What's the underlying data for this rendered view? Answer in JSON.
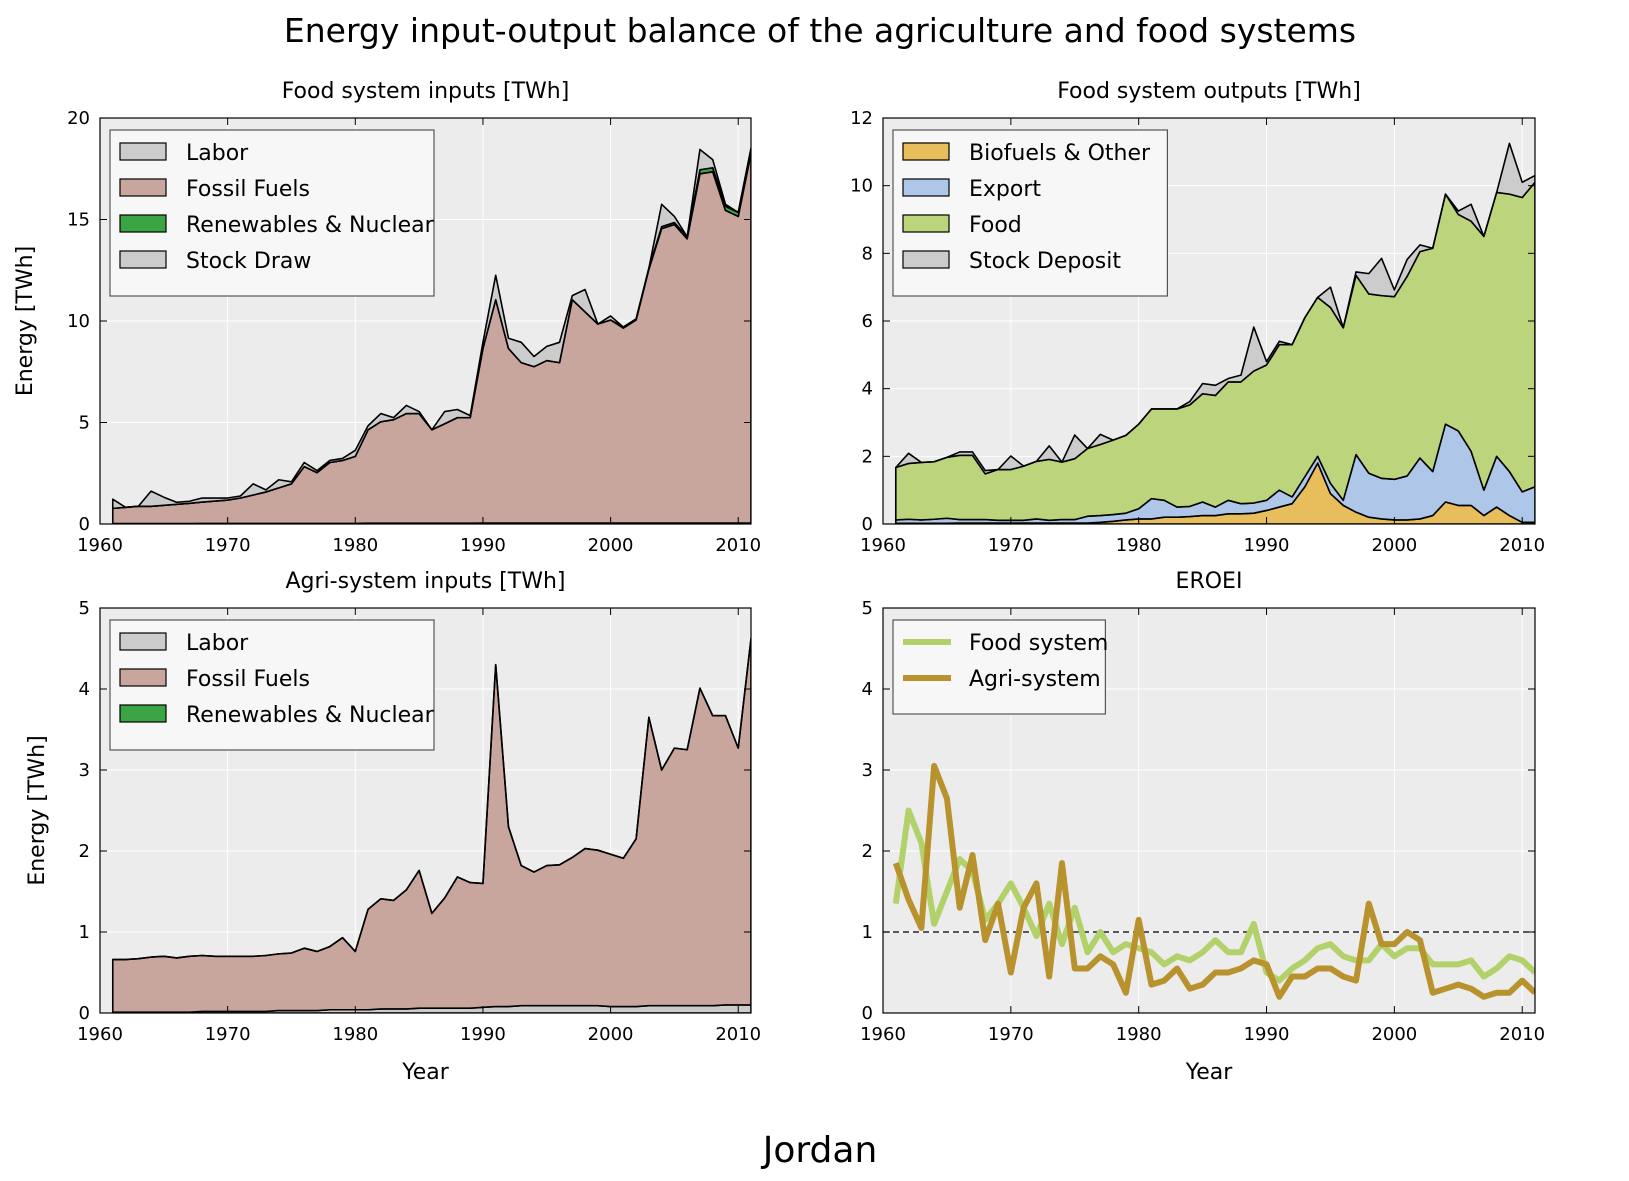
{
  "figure": {
    "title": "Energy input-output balance of the agriculture and food systems",
    "country": "Jordan"
  },
  "chart_data": [
    {
      "id": "food_inputs",
      "type": "area",
      "title": "Food system inputs [TWh]",
      "xlabel": "",
      "ylabel": "Energy [TWh]",
      "xlim": [
        1960,
        2011
      ],
      "ylim": [
        0,
        20
      ],
      "xticks": [
        1960,
        1970,
        1980,
        1990,
        2000,
        2010
      ],
      "yticks": [
        0,
        5,
        10,
        15,
        20
      ],
      "grid": true,
      "legend_position": "top-left",
      "x": [
        1961,
        1962,
        1963,
        1964,
        1965,
        1966,
        1967,
        1968,
        1969,
        1970,
        1971,
        1972,
        1973,
        1974,
        1975,
        1976,
        1977,
        1978,
        1979,
        1980,
        1981,
        1982,
        1983,
        1984,
        1985,
        1986,
        1987,
        1988,
        1989,
        1990,
        1991,
        1992,
        1993,
        1994,
        1995,
        1996,
        1997,
        1998,
        1999,
        2000,
        2001,
        2002,
        2003,
        2004,
        2005,
        2006,
        2007,
        2008,
        2009,
        2010,
        2011
      ],
      "series": [
        {
          "name": "Labor",
          "color": "#cccccc",
          "values": [
            0.02,
            0.02,
            0.02,
            0.02,
            0.02,
            0.02,
            0.02,
            0.03,
            0.03,
            0.03,
            0.03,
            0.03,
            0.03,
            0.03,
            0.03,
            0.03,
            0.03,
            0.03,
            0.03,
            0.03,
            0.04,
            0.04,
            0.04,
            0.04,
            0.04,
            0.04,
            0.04,
            0.04,
            0.04,
            0.05,
            0.05,
            0.05,
            0.05,
            0.05,
            0.05,
            0.05,
            0.05,
            0.05,
            0.05,
            0.05,
            0.05,
            0.05,
            0.05,
            0.05,
            0.05,
            0.05,
            0.05,
            0.05,
            0.05,
            0.05,
            0.05
          ]
        },
        {
          "name": "Fossil Fuels",
          "color": "#c8a59d",
          "values": [
            0.75,
            0.8,
            0.85,
            0.85,
            0.9,
            0.95,
            1.0,
            1.05,
            1.1,
            1.15,
            1.25,
            1.4,
            1.55,
            1.75,
            1.95,
            2.8,
            2.5,
            3.0,
            3.1,
            3.3,
            4.6,
            5.0,
            5.1,
            5.4,
            5.4,
            4.6,
            4.9,
            5.2,
            5.2,
            8.6,
            11.0,
            8.6,
            7.9,
            7.7,
            8.0,
            7.9,
            11.0,
            10.4,
            9.8,
            10.0,
            9.6,
            10.0,
            12.5,
            14.5,
            14.7,
            14.0,
            17.2,
            17.3,
            15.4,
            15.1,
            18.2
          ]
        },
        {
          "name": "Renewables & Nuclear",
          "color": "#3aa542",
          "values": [
            0,
            0,
            0,
            0,
            0,
            0,
            0,
            0,
            0,
            0,
            0,
            0,
            0,
            0,
            0,
            0,
            0,
            0,
            0,
            0,
            0,
            0,
            0,
            0,
            0,
            0,
            0,
            0,
            0,
            0,
            0,
            0,
            0,
            0,
            0,
            0,
            0,
            0,
            0,
            0,
            0.05,
            0.05,
            0.05,
            0.1,
            0.1,
            0.1,
            0.2,
            0.2,
            0.2,
            0.2,
            0.25
          ]
        },
        {
          "name": "Stock Draw",
          "color": "#cccccc",
          "values": [
            0.45,
            0,
            0,
            0.75,
            0.4,
            0.1,
            0.1,
            0.2,
            0.15,
            0.1,
            0.1,
            0.55,
            0.1,
            0.4,
            0.1,
            0.2,
            0.1,
            0.1,
            0.1,
            0.3,
            0.2,
            0.4,
            0.1,
            0.4,
            0.1,
            0,
            0.6,
            0.4,
            0.1,
            0.3,
            1.2,
            0.5,
            1.0,
            0.5,
            0.7,
            1.0,
            0.2,
            1.1,
            0,
            0.2,
            0,
            0,
            0,
            1.1,
            0.3,
            0,
            1.0,
            0.4,
            0.1,
            0,
            0
          ]
        }
      ]
    },
    {
      "id": "food_outputs",
      "type": "area",
      "title": "Food system outputs [TWh]",
      "xlabel": "",
      "ylabel": "",
      "xlim": [
        1960,
        2011
      ],
      "ylim": [
        0,
        12
      ],
      "xticks": [
        1960,
        1970,
        1980,
        1990,
        2000,
        2010
      ],
      "yticks": [
        0,
        2,
        4,
        6,
        8,
        10,
        12
      ],
      "grid": true,
      "legend_position": "top-left",
      "x": [
        1961,
        1962,
        1963,
        1964,
        1965,
        1966,
        1967,
        1968,
        1969,
        1970,
        1971,
        1972,
        1973,
        1974,
        1975,
        1976,
        1977,
        1978,
        1979,
        1980,
        1981,
        1982,
        1983,
        1984,
        1985,
        1986,
        1987,
        1988,
        1989,
        1990,
        1991,
        1992,
        1993,
        1994,
        1995,
        1996,
        1997,
        1998,
        1999,
        2000,
        2001,
        2002,
        2003,
        2004,
        2005,
        2006,
        2007,
        2008,
        2009,
        2010,
        2011
      ],
      "series": [
        {
          "name": "Biofuels & Other",
          "color": "#e8be5c",
          "values": [
            0.02,
            0.02,
            0.02,
            0.02,
            0.02,
            0.03,
            0.03,
            0.03,
            0.03,
            0.03,
            0.03,
            0.03,
            0.03,
            0.03,
            0.03,
            0.03,
            0.05,
            0.08,
            0.12,
            0.15,
            0.15,
            0.2,
            0.2,
            0.22,
            0.25,
            0.25,
            0.3,
            0.3,
            0.32,
            0.4,
            0.5,
            0.6,
            1.1,
            1.8,
            0.9,
            0.55,
            0.35,
            0.2,
            0.15,
            0.12,
            0.12,
            0.15,
            0.25,
            0.65,
            0.55,
            0.55,
            0.25,
            0.5,
            0.25,
            0.05,
            0.05
          ]
        },
        {
          "name": "Export",
          "color": "#aec7e8",
          "values": [
            0.1,
            0.12,
            0.1,
            0.12,
            0.15,
            0.1,
            0.1,
            0.1,
            0.08,
            0.08,
            0.08,
            0.12,
            0.08,
            0.1,
            0.1,
            0.2,
            0.2,
            0.2,
            0.2,
            0.3,
            0.6,
            0.5,
            0.3,
            0.3,
            0.4,
            0.25,
            0.4,
            0.3,
            0.3,
            0.3,
            0.5,
            0.2,
            0.3,
            0.2,
            0.3,
            0.15,
            1.7,
            1.3,
            1.2,
            1.2,
            1.3,
            1.8,
            1.3,
            2.3,
            2.2,
            1.6,
            0.75,
            1.5,
            1.3,
            0.9,
            1.05
          ]
        },
        {
          "name": "Food",
          "color": "#bcd47b",
          "values": [
            1.55,
            1.65,
            1.7,
            1.7,
            1.8,
            1.9,
            1.9,
            1.35,
            1.5,
            1.5,
            1.6,
            1.7,
            1.8,
            1.7,
            1.8,
            2.0,
            2.1,
            2.2,
            2.3,
            2.5,
            2.65,
            2.7,
            2.9,
            3.0,
            3.2,
            3.3,
            3.5,
            3.6,
            3.9,
            4.0,
            4.3,
            4.5,
            4.7,
            4.7,
            5.2,
            5.1,
            5.3,
            5.3,
            5.4,
            5.4,
            5.9,
            6.1,
            6.6,
            6.8,
            6.4,
            6.8,
            7.5,
            7.8,
            8.2,
            8.7,
            9.0
          ]
        },
        {
          "name": "Stock Deposit",
          "color": "#cccccc",
          "values": [
            0,
            0.3,
            0,
            0,
            0,
            0.1,
            0.1,
            0.1,
            0,
            0.4,
            0,
            0,
            0.4,
            0,
            0.7,
            0,
            0.3,
            0,
            0,
            0,
            0,
            0,
            0,
            0.1,
            0.3,
            0.3,
            0.1,
            0.2,
            1.3,
            0.1,
            0.1,
            0,
            0,
            0,
            0.6,
            0,
            0.1,
            0.6,
            1.1,
            0.2,
            0.5,
            0.2,
            0,
            0,
            0.1,
            0.5,
            0,
            0,
            1.5,
            0.45,
            0.2
          ]
        }
      ]
    },
    {
      "id": "agri_inputs",
      "type": "area",
      "title": "Agri-system inputs [TWh]",
      "xlabel": "Year",
      "ylabel": "Energy [TWh]",
      "xlim": [
        1960,
        2011
      ],
      "ylim": [
        0,
        5
      ],
      "xticks": [
        1960,
        1970,
        1980,
        1990,
        2000,
        2010
      ],
      "yticks": [
        0,
        1,
        2,
        3,
        4,
        5
      ],
      "grid": true,
      "legend_position": "top-left",
      "x": [
        1961,
        1962,
        1963,
        1964,
        1965,
        1966,
        1967,
        1968,
        1969,
        1970,
        1971,
        1972,
        1973,
        1974,
        1975,
        1976,
        1977,
        1978,
        1979,
        1980,
        1981,
        1982,
        1983,
        1984,
        1985,
        1986,
        1987,
        1988,
        1989,
        1990,
        1991,
        1992,
        1993,
        1994,
        1995,
        1996,
        1997,
        1998,
        1999,
        2000,
        2001,
        2002,
        2003,
        2004,
        2005,
        2006,
        2007,
        2008,
        2009,
        2010,
        2011
      ],
      "series": [
        {
          "name": "Labor",
          "color": "#cccccc",
          "values": [
            0.01,
            0.01,
            0.01,
            0.01,
            0.01,
            0.01,
            0.01,
            0.02,
            0.02,
            0.02,
            0.02,
            0.02,
            0.02,
            0.03,
            0.03,
            0.03,
            0.03,
            0.04,
            0.04,
            0.04,
            0.04,
            0.05,
            0.05,
            0.05,
            0.06,
            0.06,
            0.06,
            0.06,
            0.06,
            0.07,
            0.08,
            0.08,
            0.09,
            0.09,
            0.09,
            0.09,
            0.09,
            0.09,
            0.09,
            0.08,
            0.08,
            0.08,
            0.09,
            0.09,
            0.09,
            0.09,
            0.09,
            0.09,
            0.1,
            0.1,
            0.1
          ]
        },
        {
          "name": "Fossil Fuels",
          "color": "#c8a59d",
          "values": [
            0.65,
            0.65,
            0.66,
            0.68,
            0.69,
            0.67,
            0.69,
            0.69,
            0.68,
            0.68,
            0.68,
            0.68,
            0.69,
            0.7,
            0.71,
            0.77,
            0.73,
            0.78,
            0.89,
            0.72,
            1.24,
            1.36,
            1.34,
            1.47,
            1.7,
            1.17,
            1.36,
            1.62,
            1.55,
            1.53,
            4.22,
            2.22,
            1.73,
            1.65,
            1.73,
            1.74,
            1.83,
            1.94,
            1.92,
            1.88,
            1.83,
            2.07,
            3.56,
            2.91,
            3.18,
            3.16,
            3.92,
            3.58,
            3.57,
            3.17,
            4.52
          ]
        },
        {
          "name": "Renewables & Nuclear",
          "color": "#3aa542",
          "values": [
            0,
            0,
            0,
            0,
            0,
            0,
            0,
            0,
            0,
            0,
            0,
            0,
            0,
            0,
            0,
            0,
            0,
            0,
            0,
            0,
            0,
            0,
            0,
            0,
            0,
            0,
            0,
            0,
            0,
            0,
            0,
            0,
            0,
            0,
            0,
            0,
            0,
            0,
            0,
            0,
            0,
            0,
            0,
            0,
            0,
            0,
            0,
            0,
            0,
            0,
            0
          ]
        }
      ]
    },
    {
      "id": "eroei",
      "type": "line",
      "title": "EROEI",
      "xlabel": "Year",
      "ylabel": "",
      "xlim": [
        1960,
        2011
      ],
      "ylim": [
        0,
        5
      ],
      "xticks": [
        1960,
        1970,
        1980,
        1990,
        2000,
        2010
      ],
      "yticks": [
        0,
        1,
        2,
        3,
        4,
        5
      ],
      "grid": true,
      "reference_line": 1,
      "legend_position": "top-left",
      "x": [
        1961,
        1962,
        1963,
        1964,
        1965,
        1966,
        1967,
        1968,
        1969,
        1970,
        1971,
        1972,
        1973,
        1974,
        1975,
        1976,
        1977,
        1978,
        1979,
        1980,
        1981,
        1982,
        1983,
        1984,
        1985,
        1986,
        1987,
        1988,
        1989,
        1990,
        1991,
        1992,
        1993,
        1994,
        1995,
        1996,
        1997,
        1998,
        1999,
        2000,
        2001,
        2002,
        2003,
        2004,
        2005,
        2006,
        2007,
        2008,
        2009,
        2010,
        2011
      ],
      "series": [
        {
          "name": "Food system",
          "color": "#b3d16b",
          "values": [
            1.35,
            2.5,
            2.1,
            1.1,
            1.5,
            1.9,
            1.75,
            1.15,
            1.35,
            1.6,
            1.3,
            0.95,
            1.35,
            0.85,
            1.3,
            0.75,
            1.0,
            0.75,
            0.85,
            0.8,
            0.75,
            0.6,
            0.7,
            0.65,
            0.75,
            0.9,
            0.75,
            0.75,
            1.1,
            0.5,
            0.4,
            0.55,
            0.65,
            0.8,
            0.85,
            0.7,
            0.65,
            0.65,
            0.85,
            0.7,
            0.8,
            0.8,
            0.6,
            0.6,
            0.6,
            0.65,
            0.45,
            0.55,
            0.7,
            0.65,
            0.5
          ]
        },
        {
          "name": "Agri-system",
          "color": "#b8922c",
          "values": [
            1.85,
            1.4,
            1.05,
            3.05,
            2.65,
            1.3,
            1.95,
            0.9,
            1.35,
            0.5,
            1.3,
            1.6,
            0.45,
            1.85,
            0.55,
            0.55,
            0.7,
            0.6,
            0.25,
            1.15,
            0.35,
            0.4,
            0.55,
            0.3,
            0.35,
            0.5,
            0.5,
            0.55,
            0.65,
            0.6,
            0.2,
            0.45,
            0.45,
            0.55,
            0.55,
            0.45,
            0.4,
            1.35,
            0.85,
            0.85,
            1.0,
            0.9,
            0.25,
            0.3,
            0.35,
            0.3,
            0.2,
            0.25,
            0.25,
            0.4,
            0.25
          ]
        }
      ]
    }
  ]
}
